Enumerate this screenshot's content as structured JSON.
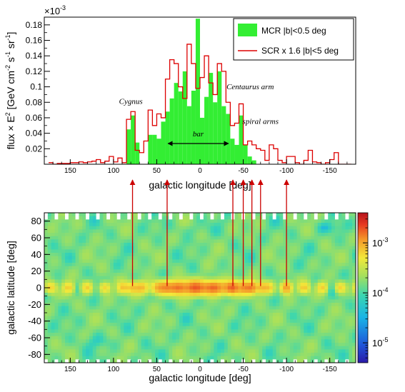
{
  "chart_data": [
    {
      "type": "bar",
      "panel": "top",
      "multiplier": "×10⁻³",
      "multiplier_base": "×10",
      "multiplier_exp": "-3",
      "xlabel": "galactic longitude [deg]",
      "ylabel_main": "flux × E",
      "ylabel_rest": " [GeV cm",
      "ylabel_tail": " s",
      "ylabel_sr": " sr",
      "ylabel_end": "]",
      "ylabel_sup2": "2",
      "ylabel_supm2": "-2",
      "ylabel_supm1": "-1",
      "xlim": [
        180,
        -180
      ],
      "ylim": [
        0,
        0.19
      ],
      "x_ticks": [
        150,
        100,
        50,
        0,
        -50,
        -100,
        -150
      ],
      "x_tick_labels": [
        "150",
        "100",
        "50",
        "0",
        "-50",
        "-100",
        "-150"
      ],
      "y_ticks": [
        0.02,
        0.04,
        0.06,
        0.08,
        0.1,
        0.12,
        0.14,
        0.16,
        0.18
      ],
      "y_tick_labels": [
        "0.02",
        "0.04",
        "0.06",
        "0.08",
        "0.1",
        "0.12",
        "0.14",
        "0.16",
        "0.18"
      ],
      "bin_width": 5,
      "legend": {
        "position": "top-right",
        "mcr_label": "MCR |b|<0.5 deg",
        "scr_label": "SCR x 1.6 |b|<5 deg"
      },
      "series": [
        {
          "name": "MCR |b|<0.5 deg",
          "style": "filled-histogram",
          "color": "#33ee33",
          "x_centers": [
            82.5,
            77.5,
            72.5,
            57.5,
            52.5,
            47.5,
            42.5,
            37.5,
            32.5,
            27.5,
            22.5,
            17.5,
            12.5,
            7.5,
            2.5,
            -2.5,
            -7.5,
            -12.5,
            -17.5,
            -22.5,
            -27.5,
            -32.5,
            -37.5,
            -42.5,
            -47.5,
            -52.5,
            -57.5,
            -62.5
          ],
          "values": [
            0.045,
            0.063,
            0.028,
            0.038,
            0.038,
            0.033,
            0.055,
            0.068,
            0.085,
            0.105,
            0.094,
            0.12,
            0.075,
            0.095,
            0.188,
            0.06,
            0.087,
            0.118,
            0.08,
            0.12,
            0.075,
            0.065,
            0.033,
            0.025,
            0.063,
            0.025,
            0.01,
            0.005
          ]
        },
        {
          "name": "SCR x 1.6 |b|<5 deg",
          "style": "step-line",
          "color": "#dd0000",
          "x_centers": [
            172.5,
            167.5,
            162.5,
            157.5,
            152.5,
            147.5,
            142.5,
            137.5,
            132.5,
            127.5,
            122.5,
            117.5,
            112.5,
            107.5,
            102.5,
            97.5,
            92.5,
            87.5,
            82.5,
            77.5,
            72.5,
            67.5,
            62.5,
            57.5,
            52.5,
            47.5,
            42.5,
            37.5,
            32.5,
            27.5,
            22.5,
            17.5,
            12.5,
            7.5,
            2.5,
            -2.5,
            -7.5,
            -12.5,
            -17.5,
            -22.5,
            -27.5,
            -32.5,
            -37.5,
            -42.5,
            -47.5,
            -52.5,
            -57.5,
            -62.5,
            -67.5,
            -72.5,
            -77.5,
            -82.5,
            -87.5,
            -92.5,
            -97.5,
            -102.5,
            -107.5,
            -112.5,
            -117.5,
            -122.5,
            -127.5,
            -132.5,
            -137.5,
            -142.5,
            -147.5,
            -152.5,
            -157.5,
            -162.5,
            -167.5,
            -172.5
          ],
          "values": [
            0.002,
            0.0,
            0.001,
            0.001,
            0.001,
            0.002,
            0.002,
            0.003,
            0.002,
            0.003,
            0.004,
            0.006,
            0.002,
            0.004,
            0.01,
            0.003,
            0.008,
            0.002,
            0.058,
            0.068,
            0.018,
            0.015,
            0.03,
            0.07,
            0.05,
            0.065,
            0.06,
            0.11,
            0.135,
            0.13,
            0.1,
            0.085,
            0.155,
            0.13,
            0.098,
            0.112,
            0.14,
            0.105,
            0.09,
            0.13,
            0.12,
            0.08,
            0.05,
            0.053,
            0.078,
            0.025,
            0.03,
            0.025,
            0.02,
            0.018,
            0.005,
            0.025,
            0.02,
            0.005,
            0.002,
            0.01,
            0.01,
            0.002,
            0.0,
            0.005,
            0.018,
            0.003,
            0.002,
            0.0,
            0.002,
            0.006,
            0.015,
            0.0,
            0.0,
            0.0
          ]
        }
      ],
      "annotations": [
        {
          "text": "Cygnus",
          "x": 80,
          "y": 0.078
        },
        {
          "text": "Centaurus arm",
          "x": -58,
          "y": 0.097
        },
        {
          "text": "spiral arms",
          "x": -70,
          "y": 0.052
        },
        {
          "text": "bar",
          "x": 2,
          "y": 0.036,
          "arrow_from": 37,
          "arrow_to": -33
        }
      ]
    },
    {
      "type": "heatmap",
      "panel": "bottom",
      "xlabel": "galactic longitude [deg]",
      "ylabel": "galactic latitude [deg]",
      "xlim": [
        180,
        -180
      ],
      "ylim": [
        -90,
        90
      ],
      "x_ticks": [
        150,
        100,
        50,
        0,
        -50,
        -100,
        -150
      ],
      "x_tick_labels": [
        "150",
        "100",
        "50",
        "0",
        "-50",
        "-100",
        "-150"
      ],
      "y_ticks": [
        80,
        60,
        40,
        20,
        0,
        -20,
        -40,
        -60,
        -80
      ],
      "y_tick_labels": [
        "80",
        "60",
        "40",
        "20",
        "0",
        "-20",
        "-40",
        "-60",
        "-80"
      ],
      "colorbar": {
        "scale": "log",
        "range": [
          4e-06,
          0.004
        ],
        "tick_base": "10",
        "tick_exps": [
          "-3",
          "-4",
          "-5"
        ],
        "tick_values": [
          0.001,
          0.0001,
          1e-05
        ]
      },
      "hotspots_galactic_longitude": [
        78,
        38,
        -38,
        -50,
        -60,
        -70,
        -100
      ],
      "projection_arrows_color": "#cc0000"
    }
  ]
}
